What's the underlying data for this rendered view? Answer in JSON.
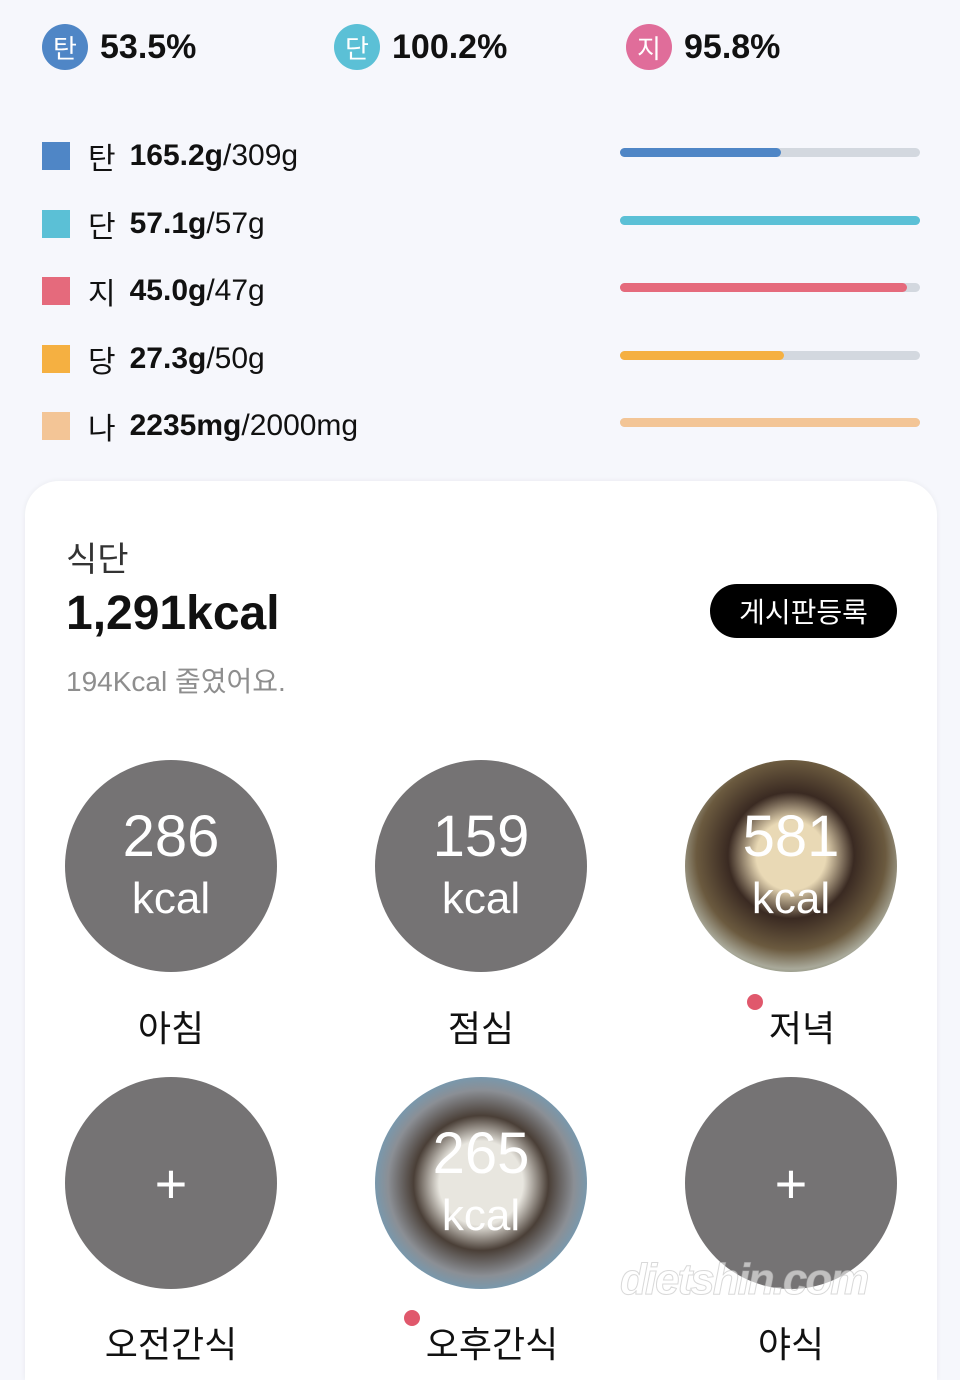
{
  "summary": [
    {
      "letter": "탄",
      "percent": "53.5%",
      "color": "#4f86c6"
    },
    {
      "letter": "단",
      "percent": "100.2%",
      "color": "#5bc0d6"
    },
    {
      "letter": "지",
      "percent": "95.8%",
      "color": "#e06d9a"
    }
  ],
  "nutrients": [
    {
      "name": "탄",
      "value": "165.2g",
      "goal": "/309g",
      "color": "#4f86c6",
      "progress": 0.535
    },
    {
      "name": "단",
      "value": "57.1g",
      "goal": "/57g",
      "color": "#5bc0d6",
      "progress": 1.0
    },
    {
      "name": "지",
      "value": "45.0g",
      "goal": "/47g",
      "color": "#e56a7c",
      "progress": 0.958
    },
    {
      "name": "당",
      "value": "27.3g",
      "goal": "/50g",
      "color": "#f5b041",
      "progress": 0.546
    },
    {
      "name": "나",
      "value": "2235mg",
      "goal": "/2000mg",
      "color": "#f3c596",
      "progress": 1.0
    }
  ],
  "diet": {
    "title": "식단",
    "total": "1,291kcal",
    "note": "194Kcal 줄였어요.",
    "post_button": "게시판등록",
    "meals": [
      {
        "label": "아침",
        "kcal": "286",
        "unit": "kcal"
      },
      {
        "label": "점심",
        "kcal": "159",
        "unit": "kcal"
      },
      {
        "label": "저녁",
        "kcal": "581",
        "unit": "kcal",
        "photo": true,
        "dot": true
      },
      {
        "label": "오전간식",
        "plus": "+"
      },
      {
        "label": "오후간식",
        "kcal": "265",
        "unit": "kcal",
        "photo": true,
        "dot": true
      },
      {
        "label": "야식",
        "plus": "+"
      }
    ]
  },
  "watermark": "dietshin.com"
}
